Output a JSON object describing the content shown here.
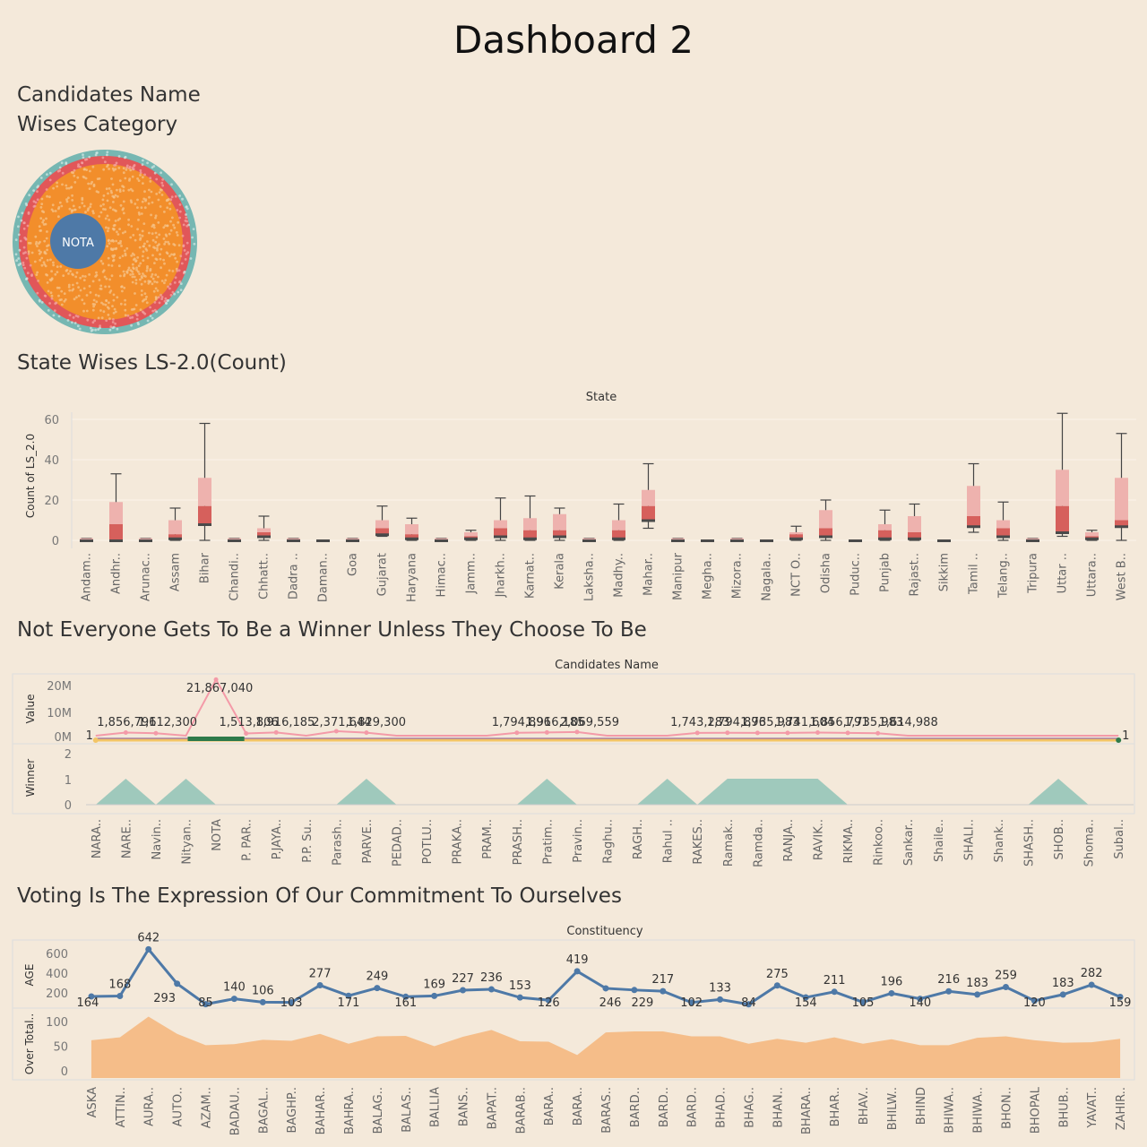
{
  "page": {
    "title": "Dashboard 2"
  },
  "bubble": {
    "title_line1": "Candidates Name",
    "title_line2": "Wises Category",
    "center_label": "NOTA",
    "colors": {
      "center": "#4e79a7",
      "inner": "#f28e2b",
      "mid": "#e15759",
      "outer": "#76b7b2"
    }
  },
  "boxplot": {
    "title": "State Wises LS-2.0(Count)",
    "header": "State",
    "ylabel": "Count of LS_2.0",
    "yticks": [
      "60",
      "40",
      "20",
      "0"
    ]
  },
  "winners": {
    "title": "Not Everyone Gets To Be a  Winner Unless They Choose To Be",
    "header": "Candidates Name",
    "value_label": "Value",
    "winner_label": "Winner",
    "value_ticks": [
      "20M",
      "10M",
      "0M"
    ],
    "winner_ticks": [
      "2",
      "1",
      "0"
    ],
    "end_labels": [
      "1",
      "1"
    ]
  },
  "voting": {
    "title": "Voting Is The Expression Of Our Commitment To Ourselves",
    "header": "Constituency",
    "age_label": "AGE",
    "over_label": "Over Total..",
    "age_ticks": [
      "600",
      "400",
      "200"
    ],
    "over_ticks": [
      "100",
      "50",
      "0"
    ]
  },
  "chart_data": [
    {
      "type": "box",
      "title": "State Wises LS-2.0(Count)",
      "xlabel": "State",
      "ylabel": "Count of LS_2.0",
      "ylim": [
        -3,
        66
      ],
      "categories": [
        "Andam..",
        "Andhr..",
        "Arunac..",
        "Assam",
        "Bihar",
        "Chandi..",
        "Chhatt..",
        "Dadra ..",
        "Daman..",
        "Goa",
        "Gujarat",
        "Haryana",
        "Himac..",
        "Jamm..",
        "Jharkh..",
        "Karnat..",
        "Kerala",
        "Laksha..",
        "Madhy..",
        "Mahar..",
        "Manipur",
        "Megha..",
        "Mizora..",
        "Nagala..",
        "NCT O..",
        "Odisha",
        "Puduc..",
        "Punjab",
        "Rajast..",
        "Sikkim",
        "Tamil ..",
        "Telang..",
        "Tripura",
        "Uttar ..",
        "Uttara..",
        "West B.."
      ],
      "boxes": [
        {
          "min": 0,
          "q1": 0,
          "median": 0,
          "q3": 1,
          "max": 1
        },
        {
          "min": 0,
          "q1": 0,
          "median": 8,
          "q3": 19,
          "max": 33
        },
        {
          "min": 0,
          "q1": 0,
          "median": 0,
          "q3": 1,
          "max": 1
        },
        {
          "min": 0,
          "q1": 1,
          "median": 3,
          "q3": 10,
          "max": 16
        },
        {
          "min": 0,
          "q1": 8,
          "median": 17,
          "q3": 31,
          "max": 58
        },
        {
          "min": 0,
          "q1": 0,
          "median": 0,
          "q3": 1,
          "max": 1
        },
        {
          "min": 0,
          "q1": 2,
          "median": 4,
          "q3": 6,
          "max": 12
        },
        {
          "min": 0,
          "q1": 0,
          "median": 0,
          "q3": 1,
          "max": 1
        },
        {
          "min": 0,
          "q1": 0,
          "median": 0,
          "q3": 0,
          "max": 0
        },
        {
          "min": 0,
          "q1": 0,
          "median": 0,
          "q3": 1,
          "max": 1
        },
        {
          "min": 2,
          "q1": 3,
          "median": 6,
          "q3": 10,
          "max": 17
        },
        {
          "min": 0,
          "q1": 1,
          "median": 3,
          "q3": 8,
          "max": 11
        },
        {
          "min": 0,
          "q1": 0,
          "median": 0,
          "q3": 1,
          "max": 1
        },
        {
          "min": 0,
          "q1": 1,
          "median": 2,
          "q3": 4,
          "max": 5
        },
        {
          "min": 0,
          "q1": 2,
          "median": 6,
          "q3": 10,
          "max": 21
        },
        {
          "min": 0,
          "q1": 1,
          "median": 5,
          "q3": 11,
          "max": 22
        },
        {
          "min": 0,
          "q1": 2,
          "median": 5,
          "q3": 13,
          "max": 16
        },
        {
          "min": 0,
          "q1": 0,
          "median": 0,
          "q3": 1,
          "max": 1
        },
        {
          "min": 0,
          "q1": 1,
          "median": 5,
          "q3": 10,
          "max": 18
        },
        {
          "min": 6,
          "q1": 10,
          "median": 17,
          "q3": 25,
          "max": 38
        },
        {
          "min": 0,
          "q1": 0,
          "median": 0,
          "q3": 1,
          "max": 1
        },
        {
          "min": 0,
          "q1": 0,
          "median": 0,
          "q3": 0,
          "max": 0
        },
        {
          "min": 0,
          "q1": 0,
          "median": 0,
          "q3": 1,
          "max": 1
        },
        {
          "min": 0,
          "q1": 0,
          "median": 0,
          "q3": 0,
          "max": 0
        },
        {
          "min": 0,
          "q1": 1,
          "median": 3,
          "q3": 4,
          "max": 7
        },
        {
          "min": 0,
          "q1": 2,
          "median": 6,
          "q3": 15,
          "max": 20
        },
        {
          "min": 0,
          "q1": 0,
          "median": 0,
          "q3": 0,
          "max": 0
        },
        {
          "min": 0,
          "q1": 1,
          "median": 5,
          "q3": 8,
          "max": 15
        },
        {
          "min": 0,
          "q1": 1,
          "median": 4,
          "q3": 12,
          "max": 18
        },
        {
          "min": 0,
          "q1": 0,
          "median": 0,
          "q3": 0,
          "max": 0
        },
        {
          "min": 4,
          "q1": 7,
          "median": 12,
          "q3": 27,
          "max": 38
        },
        {
          "min": 0,
          "q1": 2,
          "median": 6,
          "q3": 10,
          "max": 19
        },
        {
          "min": 0,
          "q1": 0,
          "median": 0,
          "q3": 1,
          "max": 1
        },
        {
          "min": 2,
          "q1": 4,
          "median": 17,
          "q3": 35,
          "max": 63
        },
        {
          "min": 0,
          "q1": 1,
          "median": 2,
          "q3": 4,
          "max": 5
        },
        {
          "min": 0,
          "q1": 7,
          "median": 10,
          "q3": 31,
          "max": 53
        }
      ]
    },
    {
      "type": "line",
      "title": "Not Everyone Gets To Be a  Winner Unless They Choose To Be",
      "xlabel": "Candidates Name",
      "ylabel": "Value",
      "categories": [
        "NARA..",
        "NARE..",
        "Navin..",
        "Nityan..",
        "NOTA",
        "P. PAR..",
        "P.JAYA..",
        "P.P. Su..",
        "Parash..",
        "PARVE..",
        "PEDAD..",
        "POTLU..",
        "PRAKA..",
        "PRAM..",
        "PRASH..",
        "Pratim..",
        "Pravin..",
        "Raghu..",
        "RAGH..",
        "Rahul ..",
        "RAKES..",
        "Ramak..",
        "Ramda..",
        "RANJA..",
        "RAVIK..",
        "RIKMA..",
        "Rinkoo..",
        "Sankar..",
        "Shaile..",
        "SHALI..",
        "Shank..",
        "SHASH..",
        "SHOB..",
        "Shoma..",
        "Subal.."
      ],
      "values": [
        null,
        1856791,
        1612300,
        null,
        21867040,
        1513806,
        1916185,
        null,
        2371644,
        1829300,
        null,
        null,
        null,
        null,
        1794896,
        1916185,
        2069559,
        null,
        null,
        null,
        1743283,
        1794896,
        1735983,
        1741604,
        1856791,
        1735983,
        1614988,
        null,
        null,
        null,
        null,
        null,
        null,
        null,
        null
      ],
      "value_labels": [
        "",
        "1,856,791",
        "1,612,300",
        "",
        "21,867,040",
        "1,513,806",
        "1,916,185",
        "",
        "2,371,644",
        "1,829,300",
        "",
        "",
        "",
        "",
        "1,794,896",
        "1,916,185",
        "2,069,559",
        "",
        "",
        "",
        "1,743,283",
        "1,794,896",
        "1,735,983",
        "1,741,604",
        "1,856,791",
        "1,735,983",
        "1,614,988",
        "",
        "",
        "",
        "",
        "",
        "",
        "",
        ""
      ],
      "winner": [
        0,
        1,
        0,
        1,
        0,
        0,
        0,
        0,
        0,
        1,
        0,
        0,
        0,
        0,
        0,
        1,
        0,
        0,
        0,
        1,
        0,
        1,
        1,
        1,
        1,
        0,
        0,
        0,
        0,
        0,
        0,
        0,
        1,
        0,
        0
      ],
      "ylim": [
        0,
        25000000
      ]
    },
    {
      "type": "line",
      "title": "Voting Is The Expression Of Our Commitment To Ourselves",
      "xlabel": "Constituency",
      "ylabel": "AGE",
      "categories": [
        "ASKA",
        "ATTIN..",
        "AURA..",
        "AUTO..",
        "AZAM..",
        "BADAU..",
        "BAGAL..",
        "BAGHP..",
        "BAHAR..",
        "BAHRA..",
        "BALAG..",
        "BALAS..",
        "BALLIA",
        "BANS..",
        "BAPAT..",
        "BARAB..",
        "BARA..",
        "BARA..",
        "BARAS..",
        "BARD..",
        "BARD..",
        "BARD..",
        "BHAD..",
        "BHAG..",
        "BHAN..",
        "BHARA..",
        "BHAR..",
        "BHAV..",
        "BHILW..",
        "BHIND",
        "BHIWA..",
        "BHIWA..",
        "BHON..",
        "BHOPAL",
        "BHUB..",
        "YAVAT..",
        "ZAHIR.."
      ],
      "age": [
        164,
        168,
        642,
        293,
        85,
        140,
        106,
        103,
        277,
        171,
        249,
        161,
        169,
        227,
        236,
        153,
        126,
        419,
        246,
        229,
        217,
        102,
        133,
        84,
        275,
        154,
        211,
        105,
        196,
        140,
        216,
        183,
        259,
        120,
        183,
        282,
        159
      ],
      "over_total_ylabel": "Over Total..",
      "over_total": [
        62,
        68,
        110,
        75,
        52,
        54,
        63,
        61,
        75,
        55,
        70,
        71,
        50,
        69,
        83,
        60,
        59,
        32,
        78,
        80,
        80,
        70,
        70,
        55,
        65,
        57,
        68,
        55,
        64,
        52,
        52,
        67,
        70,
        62,
        57,
        58,
        65
      ],
      "age_ylim": [
        0,
        700
      ],
      "over_total_ylim": [
        0,
        110
      ]
    }
  ]
}
